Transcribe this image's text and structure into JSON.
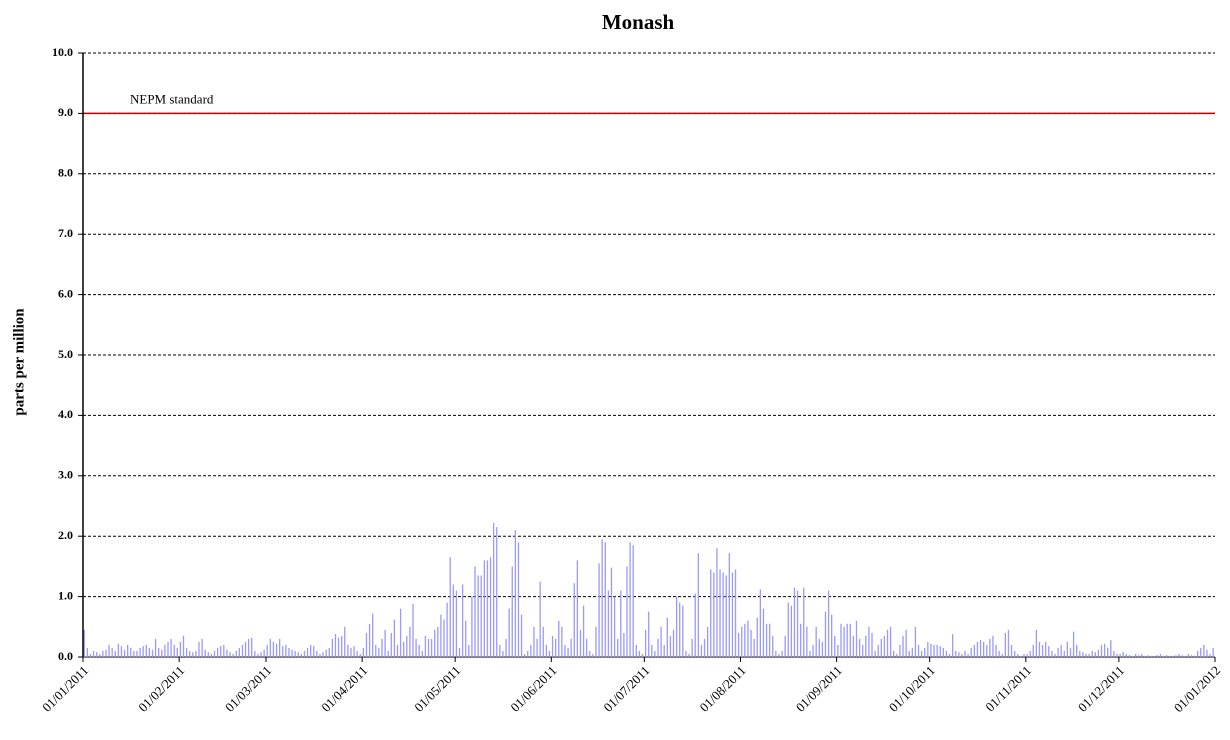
{
  "chart_data": {
    "type": "bar",
    "title": "Monash",
    "y_label": "parts per million",
    "color": "#9999ff",
    "ylim": [
      0,
      10
    ],
    "yticks": [
      {
        "value": 0,
        "label": "0.0"
      },
      {
        "value": 1,
        "label": "1.0"
      },
      {
        "value": 2,
        "label": "2.0"
      },
      {
        "value": 3,
        "label": "3.0"
      },
      {
        "value": 4,
        "label": "4.0"
      },
      {
        "value": 5,
        "label": "5.0"
      },
      {
        "value": 6,
        "label": "6.0"
      },
      {
        "value": 7,
        "label": "7.0"
      },
      {
        "value": 8,
        "label": "8.0"
      },
      {
        "value": 9,
        "label": "9.0"
      },
      {
        "value": 10,
        "label": "10.0"
      }
    ],
    "xlim": [
      "01/01/2011",
      "01/01/2012"
    ],
    "xticks": [
      "01/01/2011",
      "01/02/2011",
      "01/03/2011",
      "01/04/2011",
      "01/05/2011",
      "01/06/2011",
      "01/07/2011",
      "01/08/2011",
      "01/09/2011",
      "01/10/2011",
      "01/11/2011",
      "01/12/2011",
      "01/01/2012"
    ],
    "grid": true,
    "reference_lines": [
      {
        "value": 9,
        "label": "NEPM standard",
        "color": "#c00000"
      }
    ],
    "x": [
      "01/01/2011",
      "02/01/2011",
      "03/01/2011",
      "04/01/2011",
      "05/01/2011",
      "06/01/2011",
      "07/01/2011",
      "08/01/2011",
      "09/01/2011",
      "10/01/2011",
      "11/01/2011",
      "12/01/2011",
      "13/01/2011",
      "14/01/2011",
      "15/01/2011",
      "16/01/2011",
      "17/01/2011",
      "18/01/2011",
      "19/01/2011",
      "20/01/2011",
      "21/01/2011",
      "22/01/2011",
      "23/01/2011",
      "24/01/2011",
      "25/01/2011",
      "26/01/2011",
      "27/01/2011",
      "28/01/2011",
      "29/01/2011",
      "30/01/2011",
      "31/01/2011",
      "01/02/2011",
      "02/02/2011",
      "03/02/2011",
      "04/02/2011",
      "05/02/2011",
      "06/02/2011",
      "07/02/2011",
      "08/02/2011",
      "09/02/2011",
      "10/02/2011",
      "11/02/2011",
      "12/02/2011",
      "13/02/2011",
      "14/02/2011",
      "15/02/2011",
      "16/02/2011",
      "17/02/2011",
      "18/02/2011",
      "19/02/2011",
      "20/02/2011",
      "21/02/2011",
      "22/02/2011",
      "23/02/2011",
      "24/02/2011",
      "25/02/2011",
      "26/02/2011",
      "27/02/2011",
      "28/02/2011",
      "01/03/2011",
      "02/03/2011",
      "03/03/2011",
      "04/03/2011",
      "05/03/2011",
      "06/03/2011",
      "07/03/2011",
      "08/03/2011",
      "09/03/2011",
      "10/03/2011",
      "11/03/2011",
      "12/03/2011",
      "13/03/2011",
      "14/03/2011",
      "15/03/2011",
      "16/03/2011",
      "17/03/2011",
      "18/03/2011",
      "19/03/2011",
      "20/03/2011",
      "21/03/2011",
      "22/03/2011",
      "23/03/2011",
      "24/03/2011",
      "25/03/2011",
      "26/03/2011",
      "27/03/2011",
      "28/03/2011",
      "29/03/2011",
      "30/03/2011",
      "31/03/2011",
      "01/04/2011",
      "02/04/2011",
      "03/04/2011",
      "04/04/2011",
      "05/04/2011",
      "06/04/2011",
      "07/04/2011",
      "08/04/2011",
      "09/04/2011",
      "10/04/2011",
      "11/04/2011",
      "12/04/2011",
      "13/04/2011",
      "14/04/2011",
      "15/04/2011",
      "16/04/2011",
      "17/04/2011",
      "18/04/2011",
      "19/04/2011",
      "20/04/2011",
      "21/04/2011",
      "22/04/2011",
      "23/04/2011",
      "24/04/2011",
      "25/04/2011",
      "26/04/2011",
      "27/04/2011",
      "28/04/2011",
      "29/04/2011",
      "30/04/2011",
      "01/05/2011",
      "02/05/2011",
      "03/05/2011",
      "04/05/2011",
      "05/05/2011",
      "06/05/2011",
      "07/05/2011",
      "08/05/2011",
      "09/05/2011",
      "10/05/2011",
      "11/05/2011",
      "12/05/2011",
      "13/05/2011",
      "14/05/2011",
      "15/05/2011",
      "16/05/2011",
      "17/05/2011",
      "18/05/2011",
      "19/05/2011",
      "20/05/2011",
      "21/05/2011",
      "22/05/2011",
      "23/05/2011",
      "24/05/2011",
      "25/05/2011",
      "26/05/2011",
      "27/05/2011",
      "28/05/2011",
      "29/05/2011",
      "30/05/2011",
      "31/05/2011",
      "01/06/2011",
      "02/06/2011",
      "03/06/2011",
      "04/06/2011",
      "05/06/2011",
      "06/06/2011",
      "07/06/2011",
      "08/06/2011",
      "09/06/2011",
      "10/06/2011",
      "11/06/2011",
      "12/06/2011",
      "13/06/2011",
      "14/06/2011",
      "15/06/2011",
      "16/06/2011",
      "17/06/2011",
      "18/06/2011",
      "19/06/2011",
      "20/06/2011",
      "21/06/2011",
      "22/06/2011",
      "23/06/2011",
      "24/06/2011",
      "25/06/2011",
      "26/06/2011",
      "27/06/2011",
      "28/06/2011",
      "29/06/2011",
      "30/06/2011",
      "01/07/2011",
      "02/07/2011",
      "03/07/2011",
      "04/07/2011",
      "05/07/2011",
      "06/07/2011",
      "07/07/2011",
      "08/07/2011",
      "09/07/2011",
      "10/07/2011",
      "11/07/2011",
      "12/07/2011",
      "13/07/2011",
      "14/07/2011",
      "15/07/2011",
      "16/07/2011",
      "17/07/2011",
      "18/07/2011",
      "19/07/2011",
      "20/07/2011",
      "21/07/2011",
      "22/07/2011",
      "23/07/2011",
      "24/07/2011",
      "25/07/2011",
      "26/07/2011",
      "27/07/2011",
      "28/07/2011",
      "29/07/2011",
      "30/07/2011",
      "31/07/2011",
      "01/08/2011",
      "02/08/2011",
      "03/08/2011",
      "04/08/2011",
      "05/08/2011",
      "06/08/2011",
      "07/08/2011",
      "08/08/2011",
      "09/08/2011",
      "10/08/2011",
      "11/08/2011",
      "12/08/2011",
      "13/08/2011",
      "14/08/2011",
      "15/08/2011",
      "16/08/2011",
      "17/08/2011",
      "18/08/2011",
      "19/08/2011",
      "20/08/2011",
      "21/08/2011",
      "22/08/2011",
      "23/08/2011",
      "24/08/2011",
      "25/08/2011",
      "26/08/2011",
      "27/08/2011",
      "28/08/2011",
      "29/08/2011",
      "30/08/2011",
      "31/08/2011",
      "01/09/2011",
      "02/09/2011",
      "03/09/2011",
      "04/09/2011",
      "05/09/2011",
      "06/09/2011",
      "07/09/2011",
      "08/09/2011",
      "09/09/2011",
      "10/09/2011",
      "11/09/2011",
      "12/09/2011",
      "13/09/2011",
      "14/09/2011",
      "15/09/2011",
      "16/09/2011",
      "17/09/2011",
      "18/09/2011",
      "19/09/2011",
      "20/09/2011",
      "21/09/2011",
      "22/09/2011",
      "23/09/2011",
      "24/09/2011",
      "25/09/2011",
      "26/09/2011",
      "27/09/2011",
      "28/09/2011",
      "29/09/2011",
      "30/09/2011",
      "01/10/2011",
      "02/10/2011",
      "03/10/2011",
      "04/10/2011",
      "05/10/2011",
      "06/10/2011",
      "07/10/2011",
      "08/10/2011",
      "09/10/2011",
      "10/10/2011",
      "11/10/2011",
      "12/10/2011",
      "13/10/2011",
      "14/10/2011",
      "15/10/2011",
      "16/10/2011",
      "17/10/2011",
      "18/10/2011",
      "19/10/2011",
      "20/10/2011",
      "21/10/2011",
      "22/10/2011",
      "23/10/2011",
      "24/10/2011",
      "25/10/2011",
      "26/10/2011",
      "27/10/2011",
      "28/10/2011",
      "29/10/2011",
      "30/10/2011",
      "31/10/2011",
      "01/11/2011",
      "02/11/2011",
      "03/11/2011",
      "04/11/2011",
      "05/11/2011",
      "06/11/2011",
      "07/11/2011",
      "08/11/2011",
      "09/11/2011",
      "10/11/2011",
      "11/11/2011",
      "12/11/2011",
      "13/11/2011",
      "14/11/2011",
      "15/11/2011",
      "16/11/2011",
      "17/11/2011",
      "18/11/2011",
      "19/11/2011",
      "20/11/2011",
      "21/11/2011",
      "22/11/2011",
      "23/11/2011",
      "24/11/2011",
      "25/11/2011",
      "26/11/2011",
      "27/11/2011",
      "28/11/2011",
      "29/11/2011",
      "30/11/2011",
      "01/12/2011",
      "02/12/2011",
      "03/12/2011",
      "04/12/2011",
      "05/12/2011",
      "06/12/2011",
      "07/12/2011",
      "08/12/2011",
      "09/12/2011",
      "10/12/2011",
      "11/12/2011",
      "12/12/2011",
      "13/12/2011",
      "14/12/2011",
      "15/12/2011",
      "16/12/2011",
      "17/12/2011",
      "18/12/2011",
      "19/12/2011",
      "20/12/2011",
      "21/12/2011",
      "22/12/2011",
      "23/12/2011",
      "24/12/2011",
      "25/12/2011",
      "26/12/2011",
      "27/12/2011",
      "28/12/2011",
      "29/12/2011",
      "30/12/2011",
      "31/12/2011"
    ],
    "values": [
      0.45,
      0.15,
      0.05,
      0.1,
      0.08,
      0.05,
      0.1,
      0.12,
      0.2,
      0.15,
      0.1,
      0.22,
      0.18,
      0.12,
      0.2,
      0.15,
      0.1,
      0.1,
      0.15,
      0.18,
      0.2,
      0.15,
      0.12,
      0.3,
      0.15,
      0.12,
      0.2,
      0.25,
      0.3,
      0.2,
      0.15,
      0.25,
      0.35,
      0.15,
      0.1,
      0.08,
      0.1,
      0.25,
      0.3,
      0.12,
      0.08,
      0.05,
      0.1,
      0.15,
      0.18,
      0.2,
      0.12,
      0.08,
      0.05,
      0.1,
      0.15,
      0.2,
      0.25,
      0.3,
      0.32,
      0.1,
      0.05,
      0.08,
      0.12,
      0.2,
      0.3,
      0.25,
      0.22,
      0.3,
      0.18,
      0.2,
      0.15,
      0.12,
      0.1,
      0.08,
      0.05,
      0.1,
      0.15,
      0.2,
      0.18,
      0.1,
      0.05,
      0.08,
      0.12,
      0.15,
      0.3,
      0.38,
      0.32,
      0.35,
      0.5,
      0.2,
      0.15,
      0.18,
      0.1,
      0.05,
      0.15,
      0.4,
      0.55,
      0.72,
      0.2,
      0.15,
      0.3,
      0.45,
      0.1,
      0.4,
      0.62,
      0.2,
      0.8,
      0.25,
      0.35,
      0.5,
      0.88,
      0.3,
      0.2,
      0.1,
      0.35,
      0.3,
      0.3,
      0.45,
      0.5,
      0.7,
      0.62,
      0.9,
      1.65,
      1.2,
      1.1,
      0.15,
      1.2,
      0.6,
      0.2,
      1.0,
      1.5,
      1.35,
      1.35,
      1.6,
      1.6,
      1.65,
      2.22,
      2.15,
      0.2,
      0.1,
      0.3,
      0.8,
      1.5,
      2.1,
      1.9,
      0.7,
      0.05,
      0.1,
      0.2,
      0.5,
      0.3,
      1.25,
      0.5,
      0.2,
      0.1,
      0.35,
      0.3,
      0.6,
      0.5,
      0.2,
      0.15,
      0.3,
      1.22,
      1.6,
      0.45,
      0.85,
      0.3,
      0.1,
      0.05,
      0.5,
      1.55,
      1.95,
      1.9,
      1.1,
      1.48,
      1.0,
      0.3,
      1.1,
      0.4,
      1.5,
      1.9,
      1.85,
      0.2,
      0.1,
      0.05,
      0.45,
      0.75,
      0.2,
      0.1,
      0.3,
      0.5,
      0.2,
      0.65,
      0.35,
      0.45,
      1.0,
      0.9,
      0.85,
      0.1,
      0.05,
      0.3,
      1.05,
      1.72,
      0.2,
      0.3,
      0.5,
      1.45,
      1.4,
      1.8,
      1.45,
      1.4,
      1.35,
      1.72,
      1.4,
      1.45,
      0.4,
      0.5,
      0.55,
      0.6,
      0.45,
      0.3,
      0.65,
      1.12,
      0.8,
      0.55,
      0.55,
      0.35,
      0.1,
      0.05,
      0.1,
      0.35,
      0.9,
      0.85,
      1.15,
      1.1,
      0.55,
      1.15,
      0.5,
      0.1,
      0.2,
      0.5,
      0.3,
      0.25,
      0.75,
      1.1,
      0.7,
      0.35,
      0.2,
      0.55,
      0.5,
      0.55,
      0.55,
      0.35,
      0.6,
      0.3,
      0.2,
      0.35,
      0.5,
      0.4,
      0.1,
      0.2,
      0.3,
      0.35,
      0.45,
      0.5,
      0.1,
      0.05,
      0.2,
      0.35,
      0.45,
      0.1,
      0.15,
      0.5,
      0.2,
      0.1,
      0.15,
      0.25,
      0.22,
      0.2,
      0.2,
      0.18,
      0.15,
      0.1,
      0.05,
      0.38,
      0.1,
      0.08,
      0.05,
      0.1,
      0.05,
      0.15,
      0.2,
      0.25,
      0.28,
      0.25,
      0.2,
      0.3,
      0.35,
      0.2,
      0.1,
      0.05,
      0.4,
      0.45,
      0.2,
      0.1,
      0.05,
      0.02,
      0.05,
      0.05,
      0.1,
      0.2,
      0.45,
      0.25,
      0.2,
      0.25,
      0.18,
      0.1,
      0.05,
      0.15,
      0.2,
      0.1,
      0.25,
      0.15,
      0.42,
      0.2,
      0.1,
      0.08,
      0.05,
      0.05,
      0.1,
      0.08,
      0.12,
      0.2,
      0.22,
      0.15,
      0.28,
      0.1,
      0.05,
      0.05,
      0.08,
      0.05,
      0.03,
      0.02,
      0.05,
      0.03,
      0.05,
      0.02,
      0.03,
      0.02,
      0.02,
      0.03,
      0.05,
      0.02,
      0.03,
      0.02,
      0.02,
      0.03,
      0.05,
      0.03,
      0.02,
      0.05,
      0.03,
      0.02,
      0.1,
      0.15,
      0.2,
      0.12,
      0.05,
      0.15
    ]
  }
}
